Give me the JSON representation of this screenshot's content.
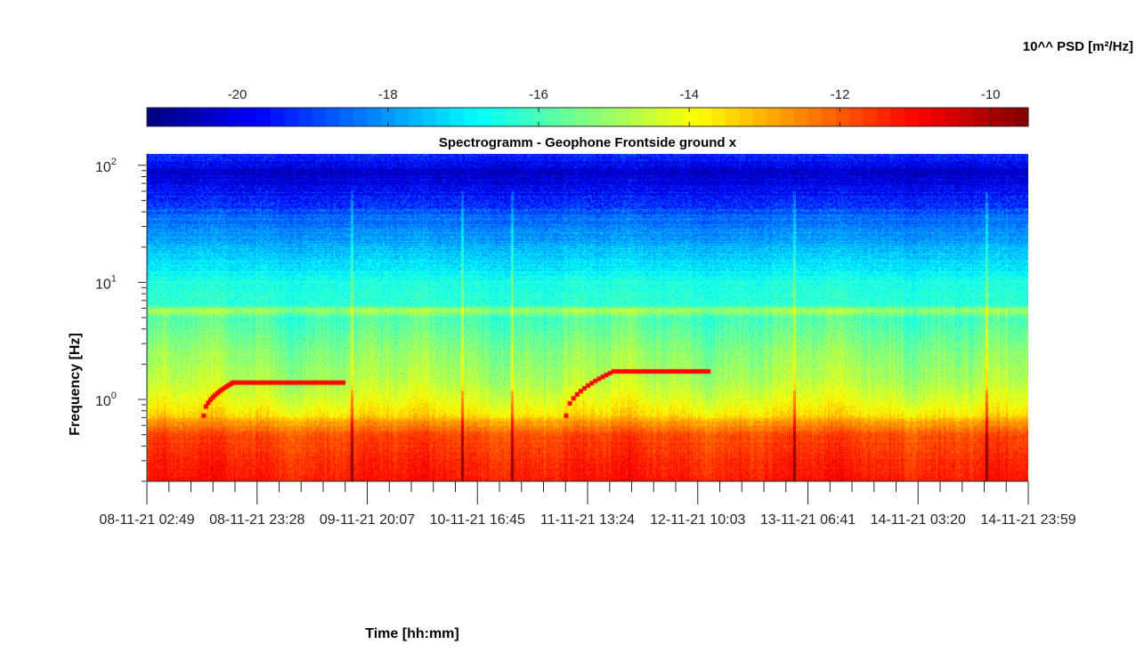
{
  "chart_data": {
    "type": "heatmap",
    "title": "Spectrogramm - Geophone Frontside ground x",
    "xlabel": "Time [hh:mm]",
    "ylabel": "Frequency [Hz]",
    "colorbar": {
      "label": "10^^ PSD [m²/Hz]",
      "range": [
        -21.2,
        -9.5
      ],
      "ticks": [
        -20,
        -18,
        -16,
        -14,
        -12,
        -10
      ],
      "colormap": "jet",
      "placement": "top"
    },
    "x_tick_labels": [
      "08-11-21  02:49",
      "08-11-21  23:28",
      "09-11-21  20:07",
      "10-11-21  16:45",
      "11-11-21  13:24",
      "12-11-21  10:03",
      "13-11-21  06:41",
      "14-11-21  03:20",
      "14-11-21  23:59"
    ],
    "x_minor_ticks_per_interval": 5,
    "yscale": "log",
    "ylim": [
      0.2,
      125
    ],
    "y_ticks": [
      {
        "value": 1,
        "label": "10",
        "exp": "0"
      },
      {
        "value": 10,
        "label": "10",
        "exp": "1"
      },
      {
        "value": 100,
        "label": "10",
        "exp": "2"
      }
    ],
    "time_range_days": [
      0,
      6.88
    ],
    "background_psd_profile": [
      {
        "f": 0.2,
        "psd": -11.2
      },
      {
        "f": 0.3,
        "psd": -11.4
      },
      {
        "f": 0.5,
        "psd": -11.8
      },
      {
        "f": 0.65,
        "psd": -12.8
      },
      {
        "f": 0.75,
        "psd": -13.6
      },
      {
        "f": 1.0,
        "psd": -14.2
      },
      {
        "f": 1.5,
        "psd": -14.8
      },
      {
        "f": 2.5,
        "psd": -15.2
      },
      {
        "f": 5.0,
        "psd": -16.0
      },
      {
        "f": 5.8,
        "psd": -14.9
      },
      {
        "f": 6.5,
        "psd": -16.3
      },
      {
        "f": 10,
        "psd": -16.5
      },
      {
        "f": 15,
        "psd": -17.2
      },
      {
        "f": 25,
        "psd": -17.9
      },
      {
        "f": 35,
        "psd": -18.5
      },
      {
        "f": 50,
        "psd": -19.3
      },
      {
        "f": 70,
        "psd": -20.0
      },
      {
        "f": 90,
        "psd": -20.3
      },
      {
        "f": 125,
        "psd": -19.2
      }
    ],
    "tone_sweeps": [
      {
        "t_start": 0.44,
        "t_plateau": 0.67,
        "t_end": 1.55,
        "f_start": 0.72,
        "f_plateau": 1.38,
        "psd": -11.0
      },
      {
        "t_start": 3.27,
        "t_plateau": 3.64,
        "t_end": 4.4,
        "f_start": 0.72,
        "f_plateau": 1.72,
        "psd": -11.0
      }
    ],
    "transients_days": [
      1.6,
      2.46,
      2.85,
      5.05,
      6.55
    ]
  }
}
